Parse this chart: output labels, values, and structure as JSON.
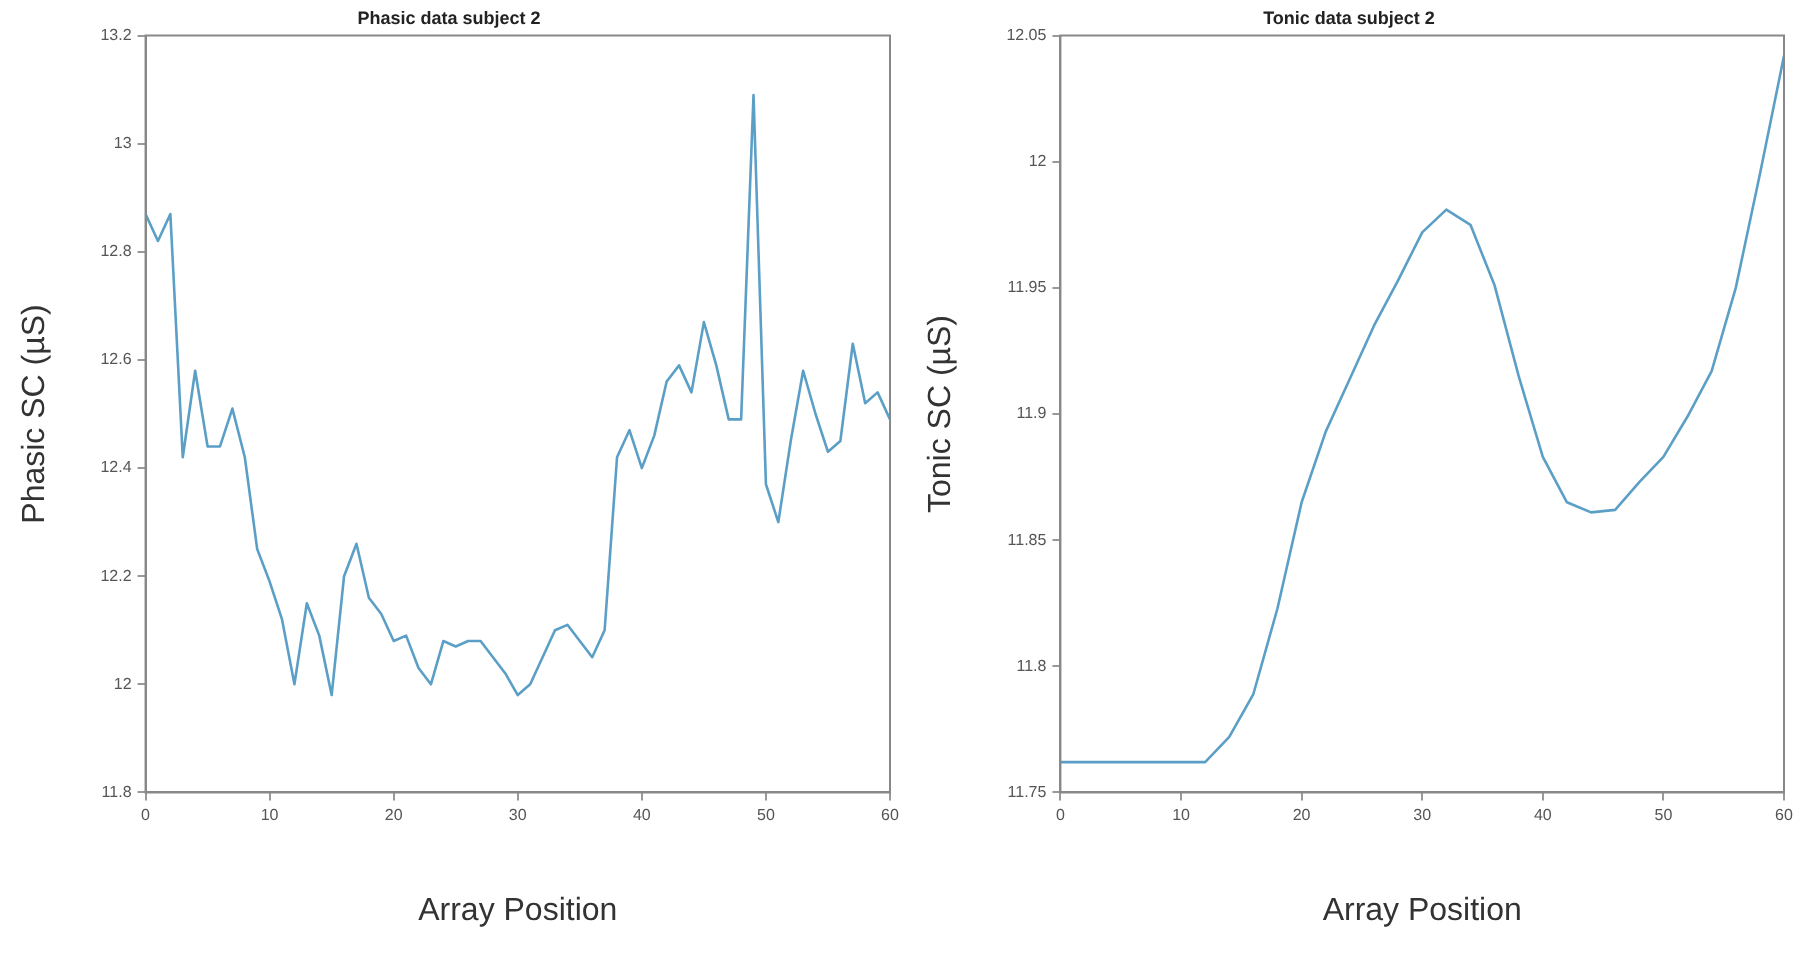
{
  "chart_data": [
    {
      "type": "line",
      "title": "Phasic data subject 2",
      "xlabel": "Array Position",
      "ylabel": "Phasic SC (µS)",
      "xlim": [
        0,
        60
      ],
      "xticks": [
        0,
        10,
        20,
        30,
        40,
        50,
        60
      ],
      "ylim": [
        11.8,
        13.2
      ],
      "yticks": [
        11.8,
        12,
        12.2,
        12.4,
        12.6,
        12.8,
        13,
        13.2
      ],
      "grid": false,
      "legend": false,
      "marker": "none",
      "line_style": "solid",
      "x": [
        0,
        1,
        2,
        3,
        4,
        5,
        6,
        7,
        8,
        9,
        10,
        11,
        12,
        13,
        14,
        15,
        16,
        17,
        18,
        19,
        20,
        21,
        22,
        23,
        24,
        25,
        26,
        27,
        28,
        29,
        30,
        31,
        32,
        33,
        34,
        35,
        36,
        37,
        38,
        39,
        40,
        41,
        42,
        43,
        44,
        45,
        46,
        47,
        48,
        49,
        50,
        51,
        52,
        53,
        54,
        55,
        56,
        57,
        58,
        59,
        60
      ],
      "series": [
        {
          "color": "#5b9fc6",
          "values": [
            12.87,
            12.82,
            12.87,
            12.42,
            12.58,
            12.44,
            12.44,
            12.51,
            12.42,
            12.25,
            12.19,
            12.12,
            12.0,
            12.15,
            12.09,
            11.98,
            12.2,
            12.26,
            12.16,
            12.13,
            12.08,
            12.09,
            12.03,
            12.0,
            12.08,
            12.07,
            12.08,
            12.08,
            12.05,
            12.02,
            11.98,
            12.0,
            12.05,
            12.1,
            12.11,
            12.08,
            12.05,
            12.1,
            12.42,
            12.47,
            12.4,
            12.46,
            12.56,
            12.59,
            12.54,
            12.67,
            12.59,
            12.49,
            12.49,
            13.09,
            12.37,
            12.3,
            12.45,
            12.58,
            12.5,
            12.43,
            12.45,
            12.63,
            12.52,
            12.54,
            12.49
          ]
        }
      ]
    },
    {
      "type": "line",
      "title": "Tonic data subject 2",
      "xlabel": "Array Position",
      "ylabel": "Tonic SC (µS)",
      "xlim": [
        0,
        60
      ],
      "xticks": [
        0,
        10,
        20,
        30,
        40,
        50,
        60
      ],
      "ylim": [
        11.75,
        12.05
      ],
      "yticks": [
        11.75,
        11.8,
        11.85,
        11.9,
        11.95,
        12,
        12.05
      ],
      "grid": false,
      "legend": false,
      "marker": "none",
      "line_style": "solid",
      "x": [
        0,
        12,
        14,
        16,
        18,
        20,
        22,
        24,
        26,
        28,
        30,
        32,
        34,
        36,
        38,
        40,
        42,
        44,
        46,
        48,
        50,
        52,
        54,
        56,
        58,
        60
      ],
      "series": [
        {
          "color": "#5b9fc6",
          "values": [
            11.762,
            11.762,
            11.772,
            11.789,
            11.823,
            11.865,
            11.893,
            11.914,
            11.935,
            11.953,
            11.972,
            11.981,
            11.975,
            11.951,
            11.915,
            11.883,
            11.865,
            11.861,
            11.862,
            11.873,
            11.883,
            11.899,
            11.917,
            11.95,
            11.995,
            12.042
          ]
        }
      ]
    }
  ]
}
